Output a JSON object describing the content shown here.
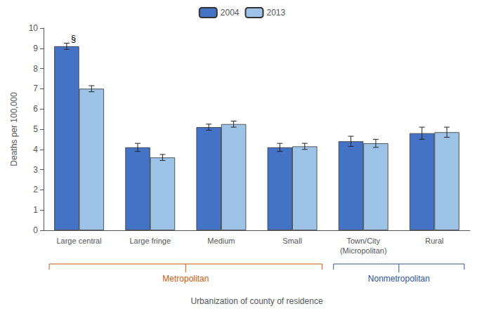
{
  "chart_data": {
    "type": "bar",
    "categories": [
      "Large central",
      "Large fringe",
      "Medium",
      "Small",
      "Town/City\n(Micropolitan)",
      "Rural"
    ],
    "series": [
      {
        "name": "2004",
        "color": "#4472C4",
        "values": [
          9.1,
          4.1,
          5.1,
          4.1,
          4.4,
          4.8
        ],
        "errors": [
          0.15,
          0.2,
          0.15,
          0.2,
          0.25,
          0.3
        ]
      },
      {
        "name": "2013",
        "color": "#9DC3E6",
        "values": [
          7.0,
          3.6,
          5.25,
          4.15,
          4.3,
          4.85
        ],
        "errors": [
          0.15,
          0.15,
          0.15,
          0.15,
          0.2,
          0.25
        ]
      }
    ],
    "ylabel": "Deaths per 100,000",
    "xlabel": "Urbanization of county of residence",
    "ylim": [
      0,
      10
    ],
    "yticks": [
      0,
      1,
      2,
      3,
      4,
      5,
      6,
      7,
      8,
      9,
      10
    ],
    "grid": false,
    "legend": "upper center",
    "annotations": [
      {
        "text": "§",
        "category": "Large central",
        "series": "2004"
      }
    ],
    "groups": [
      {
        "label": "Metropolitan",
        "color": "#C55A11",
        "from": "Large central",
        "to": "Small"
      },
      {
        "label": "Nonmetropolitan",
        "color": "#2F5496",
        "from": "Town/City\n(Micropolitan)",
        "to": "Rural"
      }
    ]
  }
}
